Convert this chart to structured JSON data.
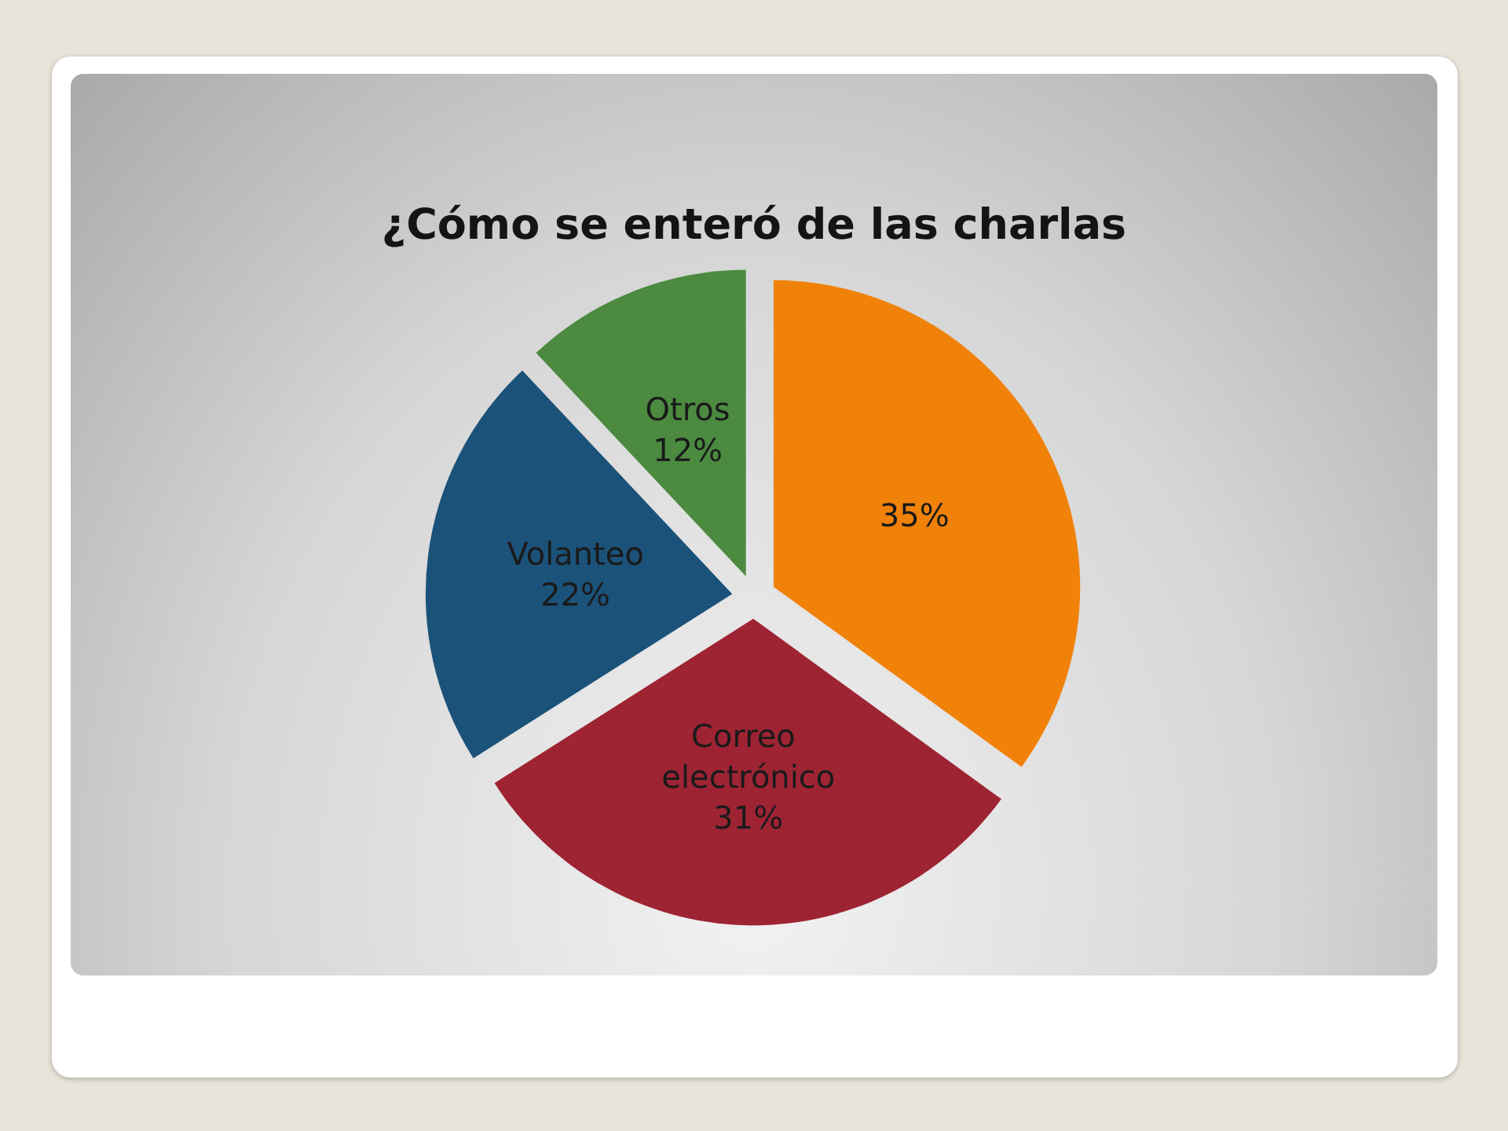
{
  "chart_data": {
    "type": "pie",
    "title": "¿Cómo se enteró de las charlas",
    "categories": [
      null,
      "Correo electrónico",
      "Volanteo",
      "Otros"
    ],
    "values": [
      35,
      31,
      22,
      12
    ],
    "colors": [
      "#f0820a",
      "#9e2433",
      "#1b5279",
      "#4b8a3f"
    ],
    "value_labels": [
      "35%",
      "31%",
      "22%",
      "12%"
    ]
  }
}
